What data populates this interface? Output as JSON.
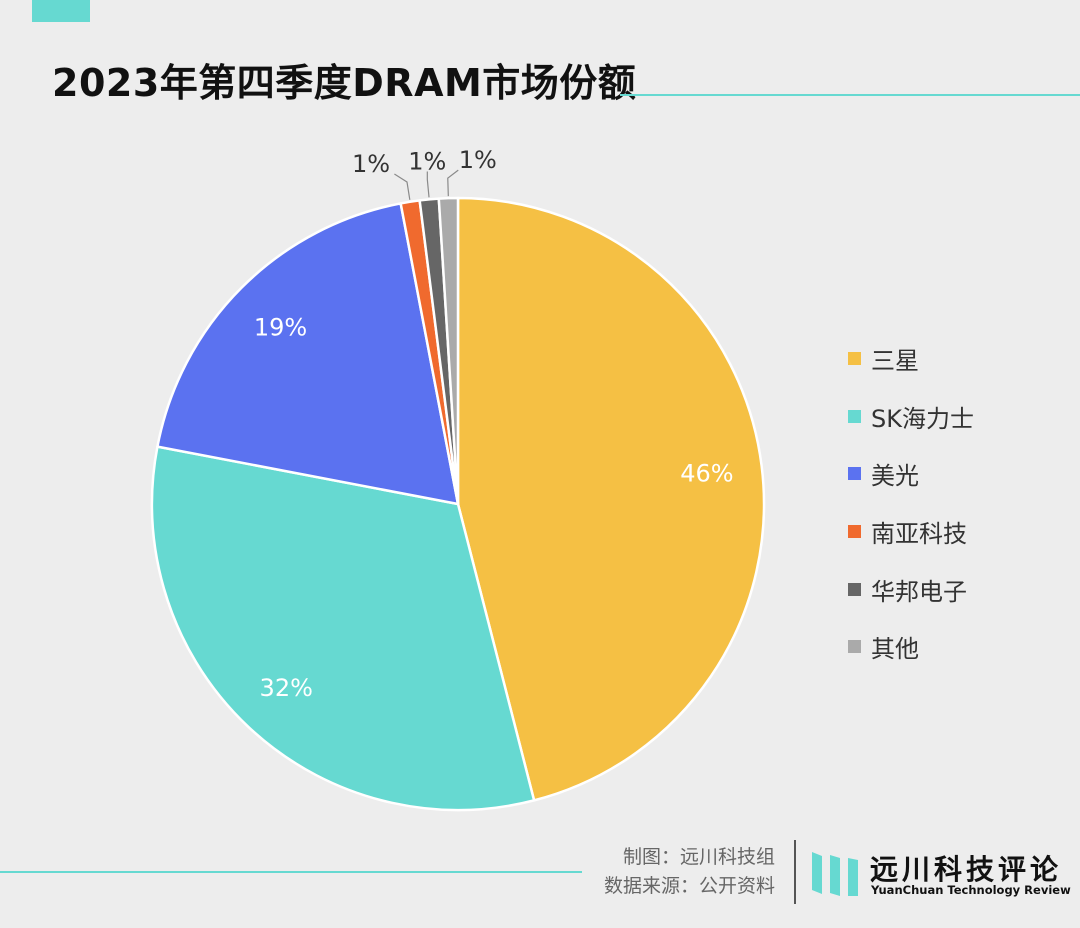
{
  "title": "2023年第四季度DRAM市场份额",
  "chart_data": {
    "type": "pie",
    "categories": [
      "三星",
      "SK海力士",
      "美光",
      "南亚科技",
      "华邦电子",
      "其他"
    ],
    "values": [
      46,
      32,
      19,
      1,
      1,
      1
    ],
    "labels": [
      "46%",
      "32%",
      "19%",
      "1%",
      "1%",
      "1%"
    ],
    "colors": [
      "#f5c044",
      "#66d9d1",
      "#5b72f0",
      "#f06a2e",
      "#666666",
      "#aaaaaa"
    ],
    "legend": "right"
  },
  "credits": {
    "maker": "制图：远川科技组",
    "source": "数据来源：公开资料"
  },
  "logo": {
    "cn": "远川科技评论",
    "en": "YuanChuan Technology Review"
  }
}
